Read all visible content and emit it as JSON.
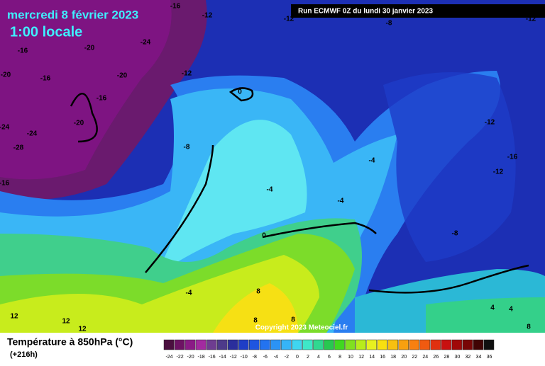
{
  "header": {
    "date": "mercredi 8 février 2023",
    "time": "1:00 locale",
    "run": "Run ECMWF 0Z du lundi 30 janvier 2023"
  },
  "map": {
    "contour_labels": [
      "-16",
      "-12",
      "-12",
      "-8",
      "-12",
      "-16",
      "-20",
      "-24",
      "-20",
      "-16",
      "-20",
      "-12",
      "-16",
      "-20",
      "-24",
      "-24",
      "-28",
      "-8",
      "-16",
      "0",
      "-12",
      "-16",
      "-12",
      "-4",
      "-4",
      "-4",
      "0",
      "-8",
      "-4",
      "8",
      "8",
      "8",
      "12",
      "12",
      "12",
      "4",
      "4",
      "8"
    ],
    "copyright": "Copyright 2023 Meteociel.fr"
  },
  "legend": {
    "title": "Température à 850hPa (°C)",
    "lead": "(+216h)",
    "labels": [
      -24,
      -22,
      -20,
      -18,
      -16,
      -14,
      -12,
      -10,
      -8,
      -6,
      -4,
      -2,
      0,
      2,
      4,
      6,
      8,
      10,
      12,
      14,
      16,
      18,
      20,
      22,
      24,
      26,
      28,
      30,
      32,
      34,
      36
    ],
    "colors": [
      "#4b0f3f",
      "#6e1264",
      "#8b1a86",
      "#a32aa0",
      "#6e3d90",
      "#4d3a8a",
      "#2a2e9c",
      "#1e3ec6",
      "#1f55e0",
      "#2373f0",
      "#2b93f5",
      "#36b4f7",
      "#3fd5f0",
      "#3ee8c8",
      "#30d890",
      "#28c850",
      "#40d820",
      "#80e020",
      "#b8ec1c",
      "#e8f020",
      "#f8e010",
      "#f8c010",
      "#f8a010",
      "#f88010",
      "#f05a10",
      "#e03010",
      "#c81010",
      "#a00808",
      "#780606",
      "#400404",
      "#101010"
    ]
  }
}
